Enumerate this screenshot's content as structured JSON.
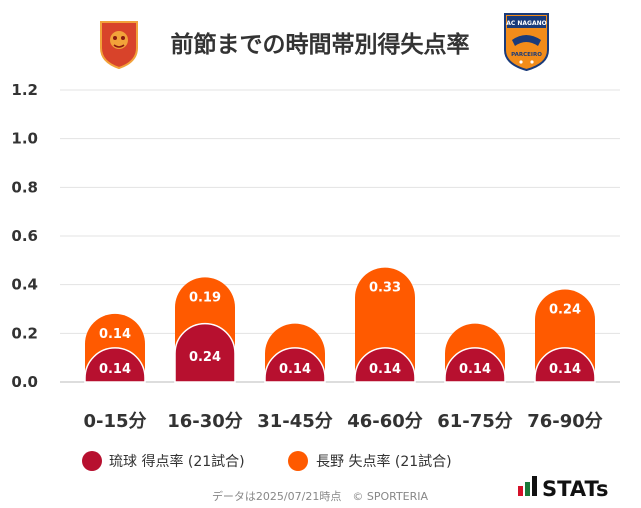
{
  "title": "前節までの時間帯別得失点率",
  "home_logo_icon": "ryukyu-lion-crest-icon",
  "away_logo_icon": "nagano-parceiro-crest-icon",
  "away_logo_texts": {
    "top": "AC NAGANO",
    "bottom": "PARCEIRO"
  },
  "chart_data": {
    "type": "bar",
    "title": "前節までの時間帯別得失点率",
    "categories": [
      "0-15分",
      "16-30分",
      "31-45分",
      "46-60分",
      "61-75分",
      "76-90分"
    ],
    "ylim": [
      0,
      1.2
    ],
    "yticks": [
      "0.0",
      "0.2",
      "0.4",
      "0.6",
      "0.8",
      "1.0",
      "1.2"
    ],
    "grid": true,
    "stacked": true,
    "series": [
      {
        "name": "琉球 得点率 (21試合)",
        "color": "#b7102f",
        "values": [
          0.14,
          0.24,
          0.14,
          0.14,
          0.14,
          0.14
        ],
        "labels": [
          "0.14",
          "0.24",
          "0.14",
          "0.14",
          "0.14",
          "0.14"
        ]
      },
      {
        "name": "長野 失点率 (21試合)",
        "color": "#ff5a00",
        "values": [
          0.14,
          0.19,
          0.1,
          0.33,
          0.1,
          0.24
        ],
        "labels": [
          "0.14",
          "0.19",
          "",
          "0.33",
          "",
          "0.24"
        ]
      }
    ],
    "legend_position": "bottom"
  },
  "footer": "データは2025/07/21時点　© SPORTERIA",
  "brand": "STATs",
  "brand_icon": "stats-bars-icon"
}
